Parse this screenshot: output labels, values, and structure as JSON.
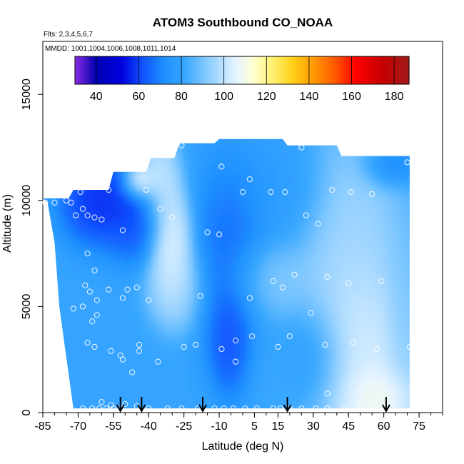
{
  "chart_data": {
    "type": "heatmap",
    "title": "ATOM3 Southbound CO_NOAA",
    "subtitle_flights": "Flts: 2,3,4,5,6,7",
    "subtitle_dates": "MMDD: 1001,1004,1006,1008,1011,1014",
    "xlabel": "Latitude (deg N)",
    "ylabel": "Altitude (m)",
    "xlim": [
      -85,
      85
    ],
    "ylim": [
      0,
      17500
    ],
    "x_ticks": [
      -85,
      -70,
      -55,
      -40,
      -25,
      -10,
      5,
      15,
      30,
      45,
      60,
      75
    ],
    "y_ticks": [
      0,
      5000,
      10000,
      15000
    ],
    "grid": false,
    "colorbar": {
      "position": "top",
      "range": [
        30,
        187
      ],
      "ticks": [
        40,
        60,
        80,
        100,
        120,
        140,
        160,
        180
      ],
      "colors": [
        {
          "v": 30,
          "c": "#8a2be2"
        },
        {
          "v": 40,
          "c": "#0000b0"
        },
        {
          "v": 52,
          "c": "#0000e0"
        },
        {
          "v": 62,
          "c": "#1155ff"
        },
        {
          "v": 72,
          "c": "#1e90ff"
        },
        {
          "v": 82,
          "c": "#3aa8ff"
        },
        {
          "v": 92,
          "c": "#87cbff"
        },
        {
          "v": 100,
          "c": "#bfe3ff"
        },
        {
          "v": 106,
          "c": "#e6f4ff"
        },
        {
          "v": 114,
          "c": "#ffffd0"
        },
        {
          "v": 122,
          "c": "#fff27a"
        },
        {
          "v": 132,
          "c": "#ffd21a"
        },
        {
          "v": 142,
          "c": "#ff9a00"
        },
        {
          "v": 152,
          "c": "#ff5a00"
        },
        {
          "v": 162,
          "c": "#ff0000"
        },
        {
          "v": 174,
          "c": "#c80000"
        },
        {
          "v": 187,
          "c": "#a01a1a"
        }
      ]
    },
    "coverage": {
      "bottom_edge": [
        [
          -72,
          200
        ],
        [
          71,
          200
        ]
      ],
      "left_edge": [
        [
          -85,
          10100
        ],
        [
          -83,
          9900
        ],
        [
          -80,
          8000
        ],
        [
          -78,
          5000
        ],
        [
          -75,
          2600
        ],
        [
          -72,
          200
        ]
      ],
      "top_edge": [
        [
          -85,
          10100
        ],
        [
          -74,
          10100
        ],
        [
          -72,
          10500
        ],
        [
          -57,
          10500
        ],
        [
          -55,
          11350
        ],
        [
          -41,
          11350
        ],
        [
          -39,
          12000
        ],
        [
          -29,
          12000
        ],
        [
          -27,
          12700
        ],
        [
          -12,
          12700
        ],
        [
          -10,
          12900
        ],
        [
          17,
          12900
        ],
        [
          19,
          12600
        ],
        [
          40,
          12600
        ],
        [
          42,
          12100
        ],
        [
          71,
          12100
        ]
      ],
      "right_edge": [
        [
          71,
          12100
        ],
        [
          71,
          200
        ]
      ]
    },
    "field_blobs": [
      {
        "lat": -62,
        "alt": 10000,
        "value": 50,
        "sx": 9,
        "sy": 1200
      },
      {
        "lat": -50,
        "alt": 10300,
        "value": 55,
        "sx": 6,
        "sy": 1000
      },
      {
        "lat": -46,
        "alt": 9000,
        "value": 58,
        "sx": 7,
        "sy": 1100
      },
      {
        "lat": -45,
        "alt": 10900,
        "value": 140,
        "sx": 4,
        "sy": 500
      },
      {
        "lat": -36,
        "alt": 11000,
        "value": 108,
        "sx": 5,
        "sy": 1200
      },
      {
        "lat": -30,
        "alt": 8000,
        "value": 115,
        "sx": 5,
        "sy": 1500
      },
      {
        "lat": -28,
        "alt": 6000,
        "value": 102,
        "sx": 7,
        "sy": 1200
      },
      {
        "lat": -6,
        "alt": 7500,
        "value": 62,
        "sx": 9,
        "sy": 2500
      },
      {
        "lat": -6,
        "alt": 3500,
        "value": 56,
        "sx": 5,
        "sy": 1500
      },
      {
        "lat": 12,
        "alt": 6300,
        "value": 95,
        "sx": 10,
        "sy": 1000
      },
      {
        "lat": 20,
        "alt": 10400,
        "value": 75,
        "sx": 10,
        "sy": 1500
      },
      {
        "lat": 45,
        "alt": 9000,
        "value": 100,
        "sx": 13,
        "sy": 2500
      },
      {
        "lat": 50,
        "alt": 2500,
        "value": 112,
        "sx": 15,
        "sy": 3000
      },
      {
        "lat": 58,
        "alt": 600,
        "value": 118,
        "sx": 9,
        "sy": 900
      },
      {
        "lat": 63,
        "alt": 11700,
        "value": 66,
        "sx": 7,
        "sy": 600
      },
      {
        "lat": 68,
        "alt": 5000,
        "value": 90,
        "sx": 4,
        "sy": 2500
      },
      {
        "lat": 30,
        "alt": 2500,
        "value": 70,
        "sx": 8,
        "sy": 1500
      }
    ],
    "background_value": 80,
    "sample_points": [
      [
        -84,
        9900
      ],
      [
        -80,
        9900
      ],
      [
        -75,
        10000
      ],
      [
        -73,
        9900
      ],
      [
        -69,
        10400
      ],
      [
        -71,
        9300
      ],
      [
        -68,
        9600
      ],
      [
        -66,
        9300
      ],
      [
        -63,
        9200
      ],
      [
        -60,
        9100
      ],
      [
        -57,
        10500
      ],
      [
        -51,
        8600
      ],
      [
        -41,
        10500
      ],
      [
        -35,
        9600
      ],
      [
        -30,
        9200
      ],
      [
        -26,
        12600
      ],
      [
        -15,
        8500
      ],
      [
        -10,
        8400
      ],
      [
        -9,
        11600
      ],
      [
        0,
        10400
      ],
      [
        3,
        11000
      ],
      [
        12,
        10400
      ],
      [
        18,
        10400
      ],
      [
        25,
        12500
      ],
      [
        27,
        9300
      ],
      [
        32,
        8900
      ],
      [
        38,
        10500
      ],
      [
        46,
        10400
      ],
      [
        55,
        10300
      ],
      [
        70,
        11800
      ],
      [
        -66,
        7500
      ],
      [
        -63,
        6700
      ],
      [
        -67,
        6000
      ],
      [
        -65,
        5700
      ],
      [
        -68,
        5000
      ],
      [
        -72,
        4900
      ],
      [
        -62,
        5300
      ],
      [
        -57,
        5800
      ],
      [
        -49,
        5800
      ],
      [
        -45,
        5900
      ],
      [
        -40,
        5300
      ],
      [
        -51,
        5400
      ],
      [
        -64,
        4300
      ],
      [
        -62,
        4600
      ],
      [
        -18,
        5500
      ],
      [
        3,
        5400
      ],
      [
        13,
        6200
      ],
      [
        17,
        5900
      ],
      [
        22,
        6500
      ],
      [
        36,
        6400
      ],
      [
        45,
        6100
      ],
      [
        59,
        6200
      ],
      [
        29,
        4700
      ],
      [
        -66,
        3300
      ],
      [
        -63,
        3100
      ],
      [
        -56,
        2900
      ],
      [
        -52,
        2700
      ],
      [
        -44,
        2900
      ],
      [
        -44,
        3200
      ],
      [
        -51,
        2500
      ],
      [
        -47,
        1900
      ],
      [
        -36,
        2400
      ],
      [
        -25,
        3100
      ],
      [
        -20,
        3200
      ],
      [
        -9,
        3000
      ],
      [
        -3,
        3400
      ],
      [
        4,
        3600
      ],
      [
        15,
        3100
      ],
      [
        20,
        3600
      ],
      [
        35,
        3200
      ],
      [
        47,
        3300
      ],
      [
        57,
        3000
      ],
      [
        -3,
        2400
      ],
      [
        -68,
        200
      ],
      [
        -64,
        200
      ],
      [
        -61,
        200
      ],
      [
        -58,
        200
      ],
      [
        -55,
        200
      ],
      [
        -52,
        200
      ],
      [
        -45,
        300
      ],
      [
        -40,
        200
      ],
      [
        -32,
        200
      ],
      [
        -26,
        200
      ],
      [
        -19,
        200
      ],
      [
        -12,
        200
      ],
      [
        -8,
        200
      ],
      [
        -4,
        200
      ],
      [
        1,
        200
      ],
      [
        6,
        200
      ],
      [
        13,
        200
      ],
      [
        16,
        200
      ],
      [
        20,
        200
      ],
      [
        25,
        200
      ],
      [
        31,
        200
      ],
      [
        36,
        200
      ],
      [
        43,
        200
      ],
      [
        50,
        200
      ],
      [
        56,
        200
      ],
      [
        63,
        200
      ],
      [
        71,
        3100
      ],
      [
        -56,
        350
      ],
      [
        -50,
        400
      ],
      [
        -60,
        500
      ],
      [
        36,
        900
      ]
    ],
    "flight_arrows_lat": [
      -52,
      -43,
      -17,
      19,
      61
    ]
  }
}
